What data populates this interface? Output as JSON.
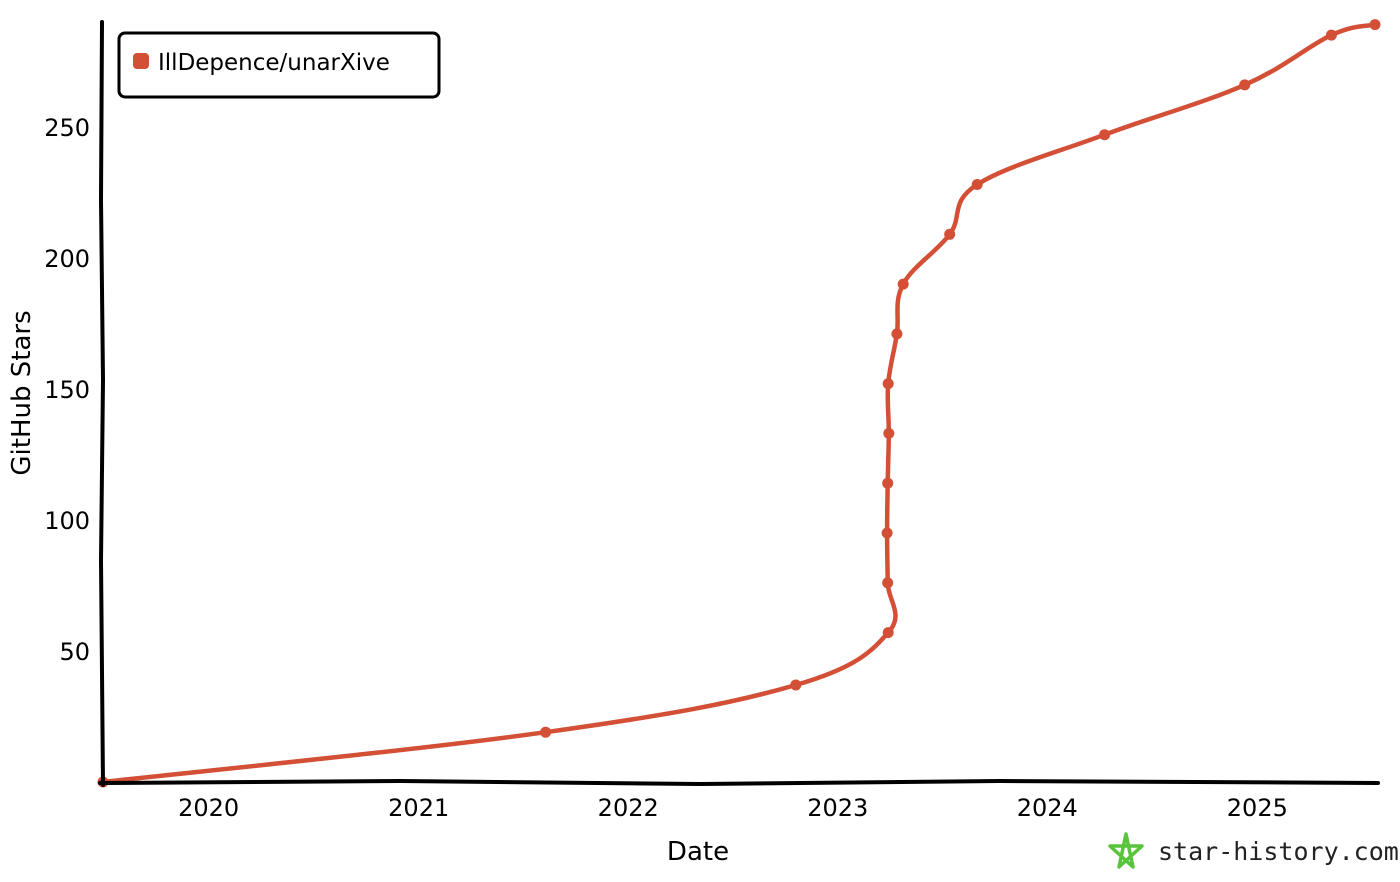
{
  "colors": {
    "series": "#d34f36",
    "axis": "#000000",
    "brand_icon": "#59c43b"
  },
  "brand": {
    "text": "star-history.com",
    "icon": "star-icon"
  },
  "chart_data": {
    "type": "line",
    "title": "",
    "xlabel": "Date",
    "ylabel": "GitHub Stars",
    "xlim": [
      "2019-07-01",
      "2025-07-25"
    ],
    "ylim": [
      0,
      290
    ],
    "x_ticks": [
      "2020",
      "2021",
      "2022",
      "2023",
      "2024",
      "2025"
    ],
    "y_ticks": [
      50,
      100,
      150,
      200,
      250
    ],
    "grid": false,
    "legend": "top-left",
    "series": [
      {
        "name": "IllDepence/unarXive",
        "color": "#d34f36",
        "points": [
          {
            "x": "2019-07-01",
            "y": 0
          },
          {
            "x": "2021-08-10",
            "y": 19
          },
          {
            "x": "2022-10-20",
            "y": 37
          },
          {
            "x": "2023-03-30",
            "y": 57
          },
          {
            "x": "2023-03-29",
            "y": 76
          },
          {
            "x": "2023-03-28",
            "y": 95
          },
          {
            "x": "2023-03-29",
            "y": 114
          },
          {
            "x": "2023-03-31",
            "y": 133
          },
          {
            "x": "2023-03-30",
            "y": 152
          },
          {
            "x": "2023-04-14",
            "y": 171
          },
          {
            "x": "2023-04-25",
            "y": 190
          },
          {
            "x": "2023-07-15",
            "y": 209
          },
          {
            "x": "2023-09-01",
            "y": 228
          },
          {
            "x": "2024-04-10",
            "y": 247
          },
          {
            "x": "2024-12-10",
            "y": 266
          },
          {
            "x": "2025-05-10",
            "y": 285
          },
          {
            "x": "2025-07-25",
            "y": 289
          }
        ]
      }
    ]
  }
}
